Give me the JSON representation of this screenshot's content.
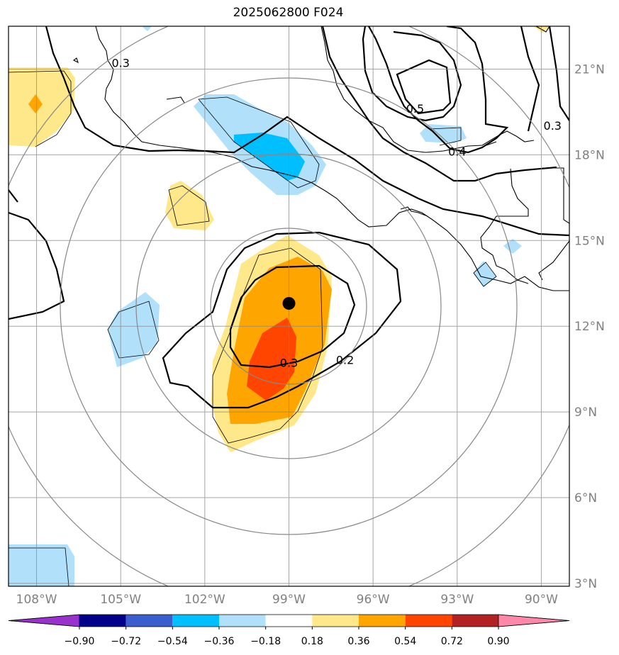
{
  "title": "2025062800 F024",
  "map": {
    "lon_range": [
      -109,
      -89
    ],
    "lat_range": [
      2.9,
      22.5
    ],
    "lat_ticks": [
      {
        "value": 21,
        "label": "21°N"
      },
      {
        "value": 18,
        "label": "18°N"
      },
      {
        "value": 15,
        "label": "15°N"
      },
      {
        "value": 12,
        "label": "12°N"
      },
      {
        "value": 9,
        "label": "9°N"
      },
      {
        "value": 6,
        "label": "6°N"
      },
      {
        "value": 3,
        "label": "3°N"
      }
    ],
    "lon_ticks": [
      {
        "value": -108,
        "label": "108°W"
      },
      {
        "value": -105,
        "label": "105°W"
      },
      {
        "value": -102,
        "label": "102°W"
      },
      {
        "value": -99,
        "label": "99°W"
      },
      {
        "value": -96,
        "label": "96°W"
      },
      {
        "value": -93,
        "label": "93°W"
      },
      {
        "value": -90,
        "label": "90°W"
      }
    ],
    "storm_center": {
      "lon": -99.0,
      "lat": 12.8
    },
    "contour_labels": [
      {
        "text": "0.3",
        "lon": -105.0,
        "lat": 21.2
      },
      {
        "text": "0.5",
        "lon": -94.5,
        "lat": 19.6
      },
      {
        "text": "0.4",
        "lon": -93.0,
        "lat": 18.1
      },
      {
        "text": "0.3",
        "lon": -89.6,
        "lat": 19.0
      },
      {
        "text": "0.3",
        "lon": -99.0,
        "lat": 10.7
      },
      {
        "text": "0.2",
        "lon": -97.0,
        "lat": 10.8
      }
    ],
    "grid": true,
    "range_rings": true
  },
  "colorbar": {
    "labels": [
      "−0.90",
      "−0.72",
      "−0.54",
      "−0.36",
      "−0.18",
      "0.18",
      "0.36",
      "0.54",
      "0.72",
      "0.90"
    ],
    "colors": [
      "#9932cc",
      "#00008b",
      "#3a5fcd",
      "#00bfff",
      "#b0e0fa",
      "#ffffff",
      "#ffe88a",
      "#ffa500",
      "#ff4500",
      "#b22222",
      "#ff88aa"
    ]
  },
  "colors": {
    "lightblue": "#b0e0fa",
    "blue": "#00bfff",
    "yellow": "#ffe88a",
    "orange": "#ffa500",
    "red": "#ff4500"
  }
}
